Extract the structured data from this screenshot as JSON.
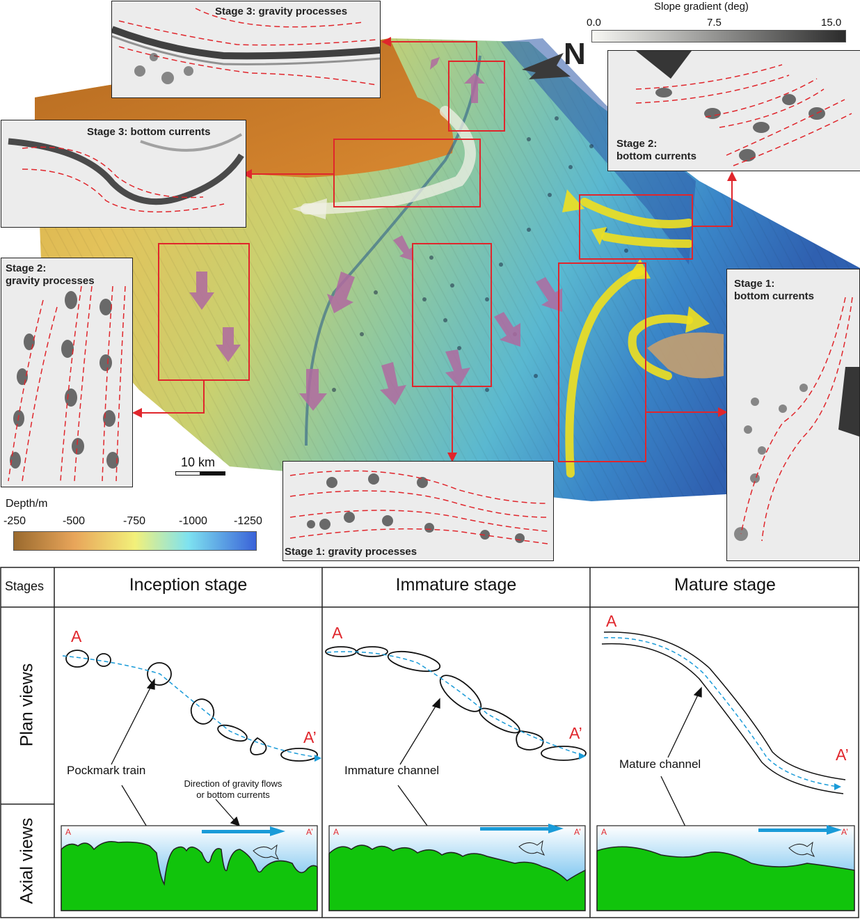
{
  "insets": {
    "stage3_gravity": "Stage 3: gravity processes",
    "stage3_bottom": "Stage 3: bottom currents",
    "stage2_gravity": "Stage 2:\ngravity processes",
    "stage2_bottom": "Stage 2:\nbottom currents",
    "stage1_bottom": "Stage 1:\nbottom currents",
    "stage1_gravity": "Stage 1: gravity processes"
  },
  "slope_legend": {
    "title": "Slope gradient (deg)",
    "ticks": [
      "0.0",
      "7.5",
      "15.0"
    ],
    "colors": [
      "#f7f7f3",
      "#2b2b2b"
    ]
  },
  "depth_legend": {
    "title": "Depth/m",
    "ticks": [
      "-250",
      "-500",
      "-750",
      "-1000",
      "-1250"
    ],
    "colors": [
      "#9a6a2e",
      "#e8a55a",
      "#f2f07a",
      "#7ee2f0",
      "#3a62d8"
    ]
  },
  "north_label": "N",
  "scale_bar": "10 km",
  "colors": {
    "box": "#e0262c",
    "gravity_arrow": "#b06aa0",
    "current_arrow": "#f0e020",
    "flow": "#1a9bd8",
    "seafloor": "#11c40c"
  },
  "table": {
    "stages_header": "Stages",
    "row_plan": "Plan views",
    "row_axial": "Axial views",
    "columns": [
      {
        "title": "Inception stage",
        "label": "Pockmark train",
        "note": "Direction of gravity flows\nor bottom currents",
        "a": "A",
        "a_prime": "A’"
      },
      {
        "title": "Immature stage",
        "label": "Immature channel",
        "a": "A",
        "a_prime": "A’"
      },
      {
        "title": "Mature stage",
        "label": "Mature channel",
        "a": "A",
        "a_prime": "A’"
      }
    ]
  }
}
